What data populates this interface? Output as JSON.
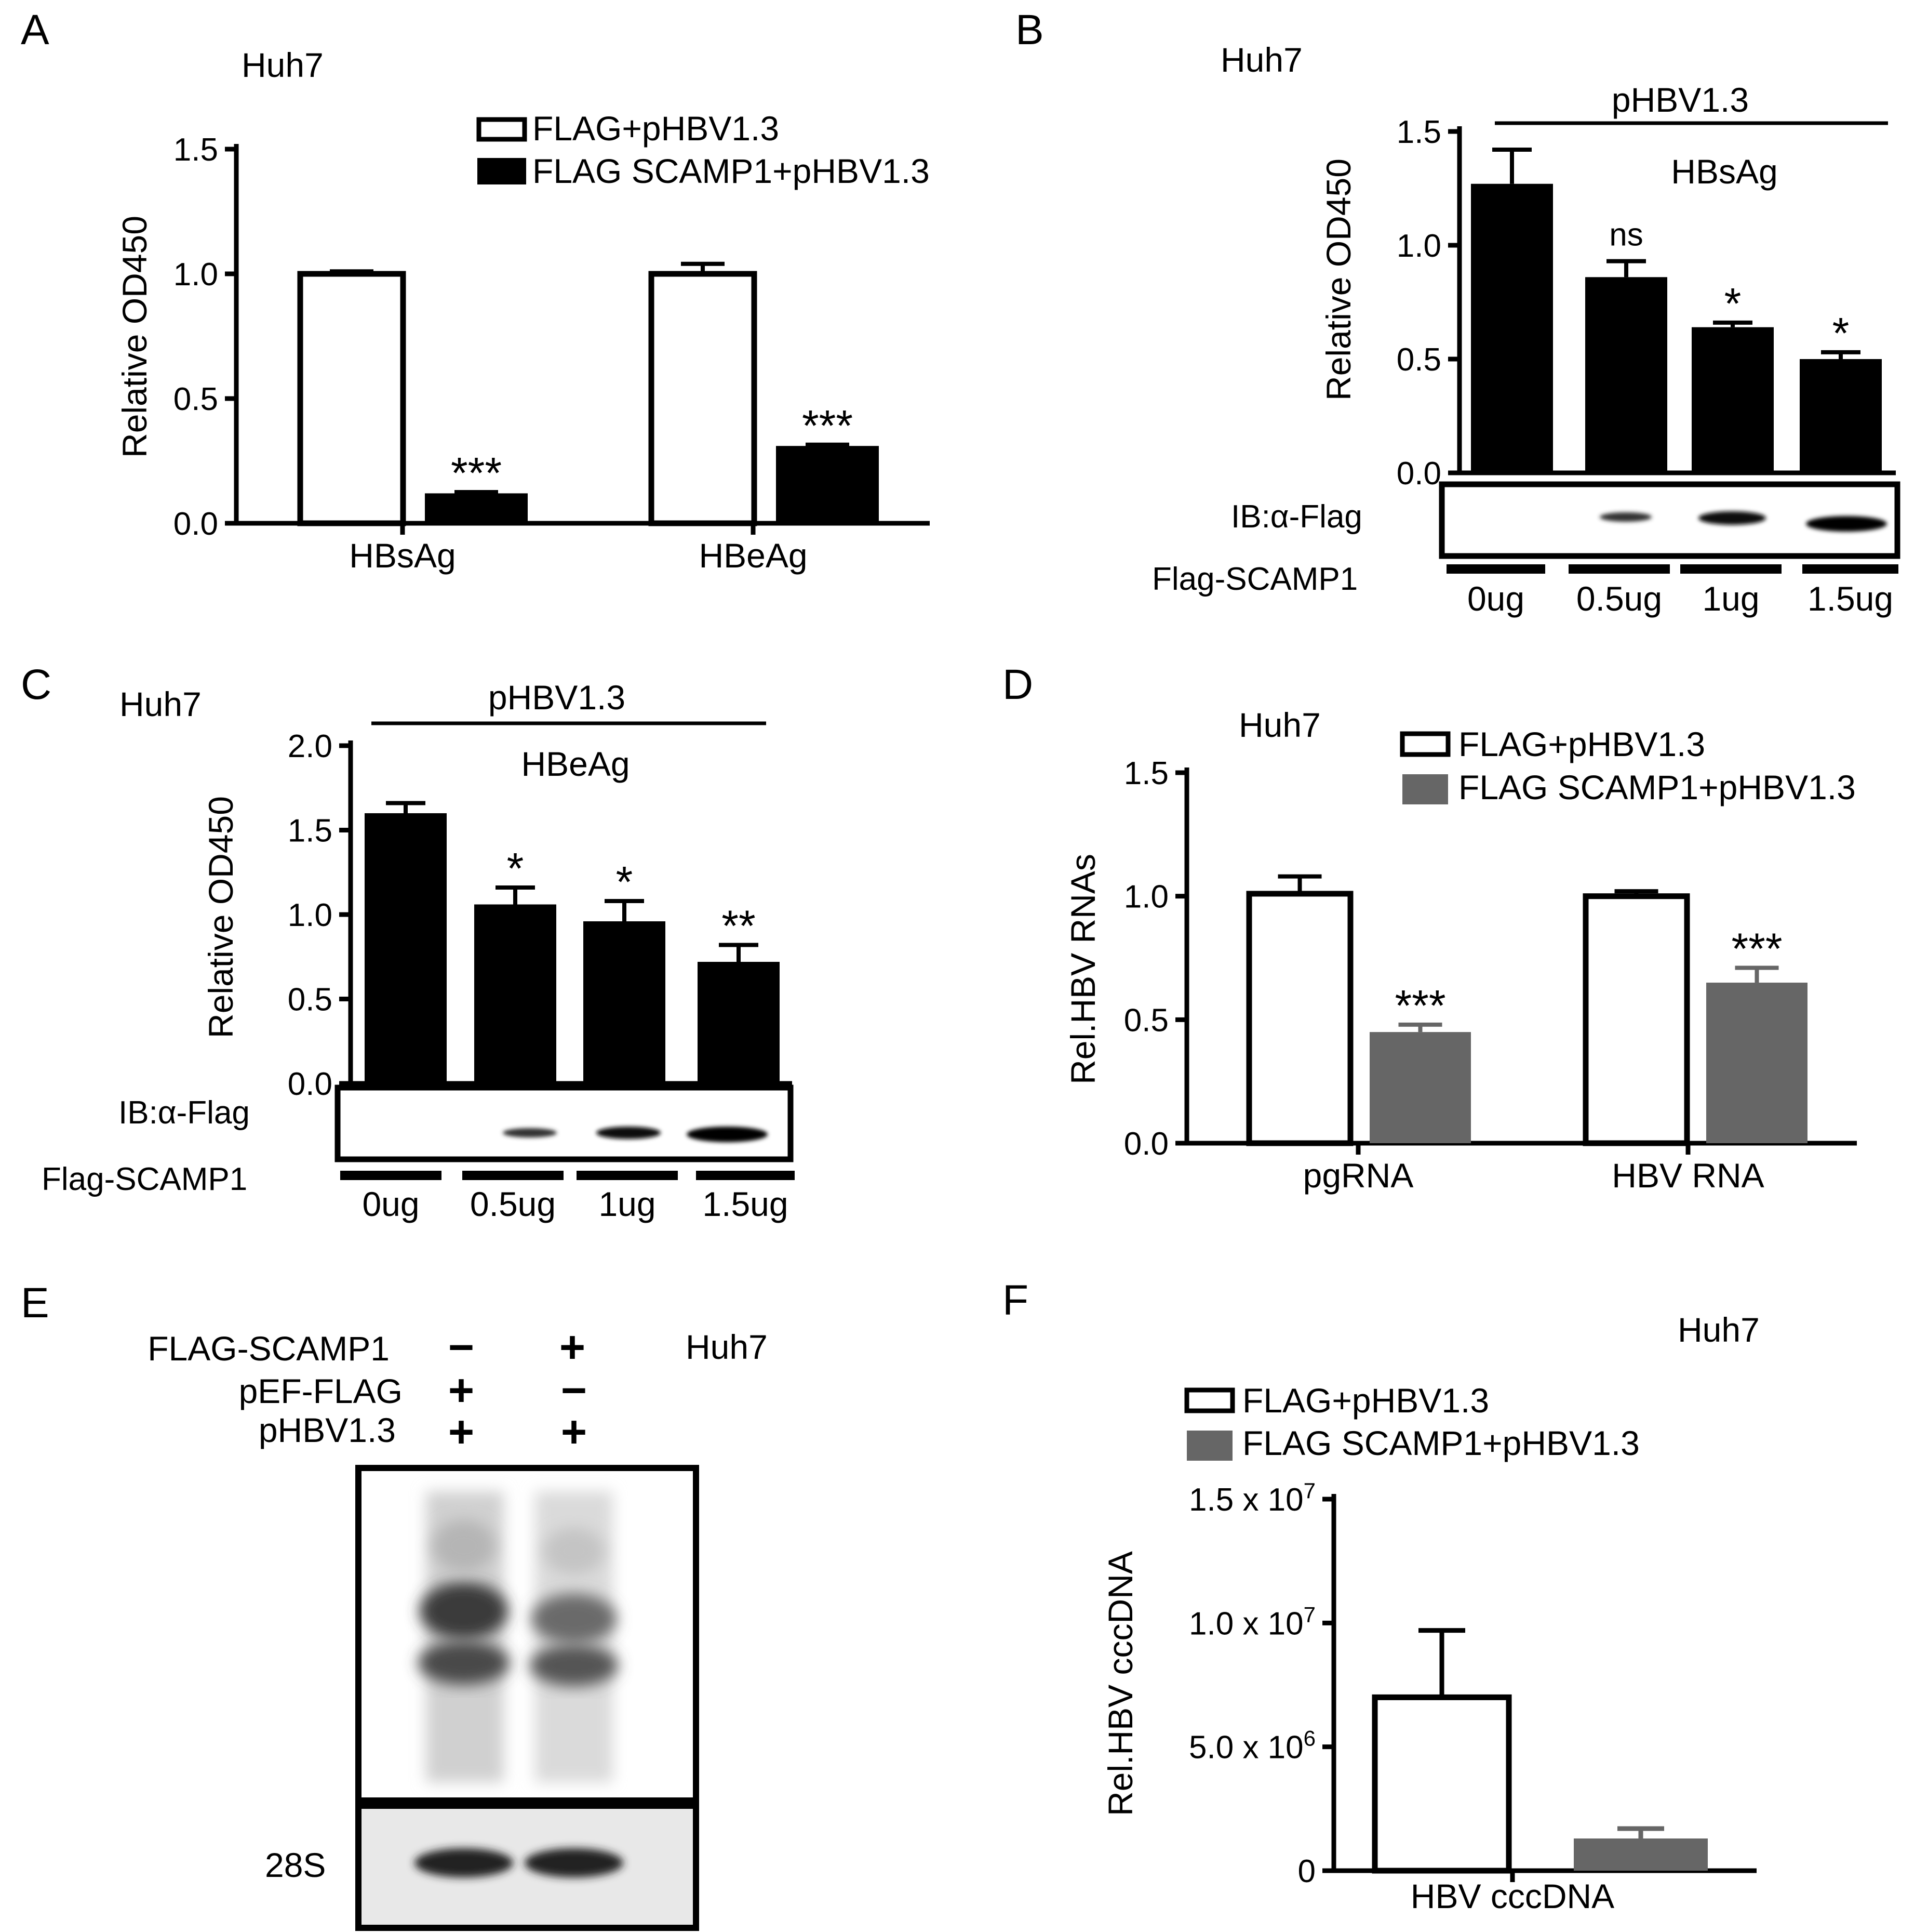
{
  "panels": {
    "A": {
      "letter": "A",
      "cell": "Huh7",
      "legend": [
        "FLAG+pHBV1.3",
        "FLAG SCAMP1+pHBV1.3"
      ]
    },
    "B": {
      "letter": "B",
      "cell": "Huh7",
      "treatment": "pHBV1.3",
      "title": "HBsAg",
      "blot_label": "IB:α-Flag",
      "row_label": "Flag-SCAMP1",
      "doses": [
        "0ug",
        "0.5ug",
        "1ug",
        "1.5ug"
      ]
    },
    "C": {
      "letter": "C",
      "cell": "Huh7",
      "treatment": "pHBV1.3",
      "title": "HBeAg",
      "blot_label": "IB:α-Flag",
      "row_label": "Flag-SCAMP1",
      "doses": [
        "0ug",
        "0.5ug",
        "1ug",
        "1.5ug"
      ]
    },
    "D": {
      "letter": "D",
      "cell": "Huh7",
      "legend": [
        "FLAG+pHBV1.3",
        "FLAG SCAMP1+pHBV1.3"
      ]
    },
    "E": {
      "letter": "E",
      "cell": "Huh7",
      "rows": [
        {
          "label": "FLAG-SCAMP1",
          "lane1": "−",
          "lane2": "+"
        },
        {
          "label": "pEF-FLAG",
          "lane1": "+",
          "lane2": "−"
        },
        {
          "label": "pHBV1.3",
          "lane1": "+",
          "lane2": "+"
        }
      ],
      "loading_label": "28S"
    },
    "F": {
      "letter": "F",
      "cell": "Huh7",
      "legend": [
        "FLAG+pHBV1.3",
        "FLAG SCAMP1+pHBV1.3"
      ]
    }
  },
  "chart_data": [
    {
      "panel": "A",
      "type": "bar",
      "categories": [
        "HBsAg",
        "HBeAg"
      ],
      "series": [
        {
          "name": "FLAG+pHBV1.3",
          "values": [
            1.0,
            1.0
          ],
          "errors": [
            0.01,
            0.04
          ],
          "color": "#ffffff"
        },
        {
          "name": "FLAG SCAMP1+pHBV1.3",
          "values": [
            0.12,
            0.31
          ],
          "errors": [
            0.005,
            0.005
          ],
          "color": "#000000"
        }
      ],
      "significance": [
        "***",
        "***"
      ],
      "ylabel": "Relative OD450",
      "ylim": [
        0,
        1.5
      ],
      "yticks": [
        "0.0",
        "0.5",
        "1.0",
        "1.5"
      ]
    },
    {
      "panel": "B",
      "type": "bar",
      "categories": [
        "0ug",
        "0.5ug",
        "1ug",
        "1.5ug"
      ],
      "values": [
        1.27,
        0.86,
        0.64,
        0.5
      ],
      "errors": [
        0.15,
        0.07,
        0.02,
        0.03
      ],
      "significance": [
        "",
        "ns",
        "*",
        "*"
      ],
      "ylabel": "Relative OD450",
      "ylim": [
        0,
        1.5
      ],
      "yticks": [
        "0.0",
        "0.5",
        "1.0",
        "1.5"
      ],
      "color": "#000000"
    },
    {
      "panel": "C",
      "type": "bar",
      "categories": [
        "0ug",
        "0.5ug",
        "1ug",
        "1.5ug"
      ],
      "values": [
        1.6,
        1.06,
        0.96,
        0.72
      ],
      "errors": [
        0.06,
        0.1,
        0.12,
        0.1
      ],
      "significance": [
        "",
        "*",
        "*",
        "**"
      ],
      "ylabel": "Relative OD450",
      "ylim": [
        0,
        2.0
      ],
      "yticks": [
        "0.0",
        "0.5",
        "1.0",
        "1.5",
        "2.0"
      ],
      "color": "#000000"
    },
    {
      "panel": "D",
      "type": "bar",
      "categories": [
        "pgRNA",
        "HBV RNA"
      ],
      "series": [
        {
          "name": "FLAG+pHBV1.3",
          "values": [
            1.01,
            1.0
          ],
          "errors": [
            0.07,
            0.02
          ],
          "color": "#ffffff"
        },
        {
          "name": "FLAG SCAMP1+pHBV1.3",
          "values": [
            0.45,
            0.65
          ],
          "errors": [
            0.03,
            0.06
          ],
          "color": "#666666"
        }
      ],
      "significance": [
        "***",
        "***"
      ],
      "ylabel": "Rel.HBV RNAs",
      "ylim": [
        0,
        1.5
      ],
      "yticks": [
        "0.0",
        "0.5",
        "1.0",
        "1.5"
      ]
    },
    {
      "panel": "F",
      "type": "bar",
      "categories": [
        "HBV cccDNA"
      ],
      "series": [
        {
          "name": "FLAG+pHBV1.3",
          "values": [
            7000000
          ],
          "errors": [
            2700000
          ],
          "color": "#ffffff"
        },
        {
          "name": "FLAG SCAMP1+pHBV1.3",
          "values": [
            1300000
          ],
          "errors": [
            400000
          ],
          "color": "#666666"
        }
      ],
      "ylabel": "Rel.HBV cccDNA",
      "ylim": [
        0,
        15000000
      ],
      "yticks": [
        {
          "mant": "0",
          "exp": ""
        },
        {
          "mant": "5.0 x 10",
          "exp": "6"
        },
        {
          "mant": "1.0 x 10",
          "exp": "7"
        },
        {
          "mant": "1.5 x 10",
          "exp": "7"
        }
      ]
    }
  ]
}
